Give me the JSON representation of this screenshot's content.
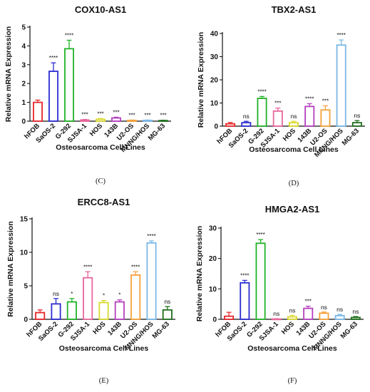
{
  "figure": {
    "panel_labels": [
      "(C)",
      "(D)",
      "(E)",
      "(F)"
    ]
  },
  "chart_data": [
    {
      "type": "bar",
      "title": "COX10-AS1",
      "xlabel": "Osteosarcoma Cell Lines",
      "ylabel": "Relative mRNA Expression",
      "ylim": [
        0,
        5
      ],
      "yticks": [
        0,
        1,
        2,
        3,
        4,
        5
      ],
      "categories": [
        "hFOB",
        "SaOS-2",
        "G-292",
        "SJSA-1",
        "HOS",
        "143B",
        "U2-OS",
        "MNNG/HOS",
        "MG-63"
      ],
      "values": [
        1.0,
        2.65,
        3.85,
        0.06,
        0.1,
        0.17,
        0.04,
        0.04,
        0.03
      ],
      "errors": [
        0.12,
        0.45,
        0.45,
        0.03,
        0.04,
        0.04,
        0.02,
        0.02,
        0.02
      ],
      "significance": [
        "",
        "****",
        "****",
        "***",
        "***",
        "***",
        "***",
        "***",
        "***"
      ],
      "colors": [
        "#e8262a",
        "#2b2bd1",
        "#20b327",
        "#e8669c",
        "#d9d92e",
        "#b53fbf",
        "#f5a13b",
        "#7bb8e6",
        "#1f6e1c"
      ],
      "panel_label": "(C)"
    },
    {
      "type": "bar",
      "title": "TBX2-AS1",
      "xlabel": "Osteosarcoma Cell Lines",
      "ylabel": "Relative mRNA Expression",
      "ylim": [
        0,
        40
      ],
      "yticks": [
        0,
        10,
        20,
        30,
        40
      ],
      "categories": [
        "hFOB",
        "SaOS-2",
        "G-292",
        "SJSA-1",
        "HOS",
        "143B",
        "U2-OS",
        "MNNG/HOS",
        "MG-63"
      ],
      "values": [
        1.0,
        1.5,
        12.0,
        6.5,
        1.5,
        8.5,
        7.0,
        35.0,
        1.5
      ],
      "errors": [
        0.6,
        0.6,
        0.8,
        1.3,
        0.6,
        1.2,
        1.8,
        2.2,
        0.9
      ],
      "significance": [
        "",
        "ns",
        "****",
        "***",
        "ns",
        "****",
        "***",
        "****",
        "ns"
      ],
      "colors": [
        "#e8262a",
        "#2b2bd1",
        "#20b327",
        "#e8669c",
        "#d9d92e",
        "#b53fbf",
        "#f5a13b",
        "#7bb8e6",
        "#1f6e1c"
      ],
      "panel_label": "(D)"
    },
    {
      "type": "bar",
      "title": "ERCC8-AS1",
      "xlabel": "Osteosarcoma Cell Lines",
      "ylabel": "Relative mRNA Expression",
      "ylim": [
        0,
        15
      ],
      "yticks": [
        0,
        5,
        10,
        15
      ],
      "categories": [
        "hFOB",
        "SaOS-2",
        "G-292",
        "SJSA-1",
        "HOS",
        "143B",
        "U2-OS",
        "MNNG/HOS",
        "MG-63"
      ],
      "values": [
        1.0,
        2.3,
        2.6,
        6.2,
        2.5,
        2.6,
        6.6,
        11.4,
        1.4
      ],
      "errors": [
        0.4,
        0.8,
        0.5,
        0.9,
        0.3,
        0.3,
        0.5,
        0.3,
        0.5
      ],
      "significance": [
        "",
        "ns",
        "*",
        "****",
        "*",
        "*",
        "****",
        "****",
        "ns"
      ],
      "colors": [
        "#e8262a",
        "#2b2bd1",
        "#20b327",
        "#e8669c",
        "#d9d92e",
        "#b53fbf",
        "#f5a13b",
        "#7bb8e6",
        "#1f6e1c"
      ],
      "panel_label": "(E)"
    },
    {
      "type": "bar",
      "title": "HMGA2-AS1",
      "xlabel": "Osteosarcoma Cell Lines",
      "ylabel": "Relative mRNA Expression",
      "ylim": [
        0,
        30
      ],
      "yticks": [
        0,
        10,
        20,
        30
      ],
      "categories": [
        "hFOB",
        "SaOS-2",
        "G-292",
        "SJSA-1",
        "HOS",
        "143B",
        "U2-OS",
        "MNNG/HOS",
        "MG-63"
      ],
      "values": [
        1.0,
        12.0,
        25.0,
        0.1,
        0.8,
        3.6,
        2.0,
        1.2,
        0.6
      ],
      "errors": [
        1.3,
        0.8,
        1.2,
        0.1,
        0.5,
        0.7,
        0.4,
        0.4,
        0.3
      ],
      "significance": [
        "",
        "****",
        "****",
        "ns",
        "ns",
        "***",
        "ns",
        "ns",
        "ns"
      ],
      "colors": [
        "#e8262a",
        "#2b2bd1",
        "#20b327",
        "#e8669c",
        "#d9d92e",
        "#b53fbf",
        "#f5a13b",
        "#7bb8e6",
        "#1f6e1c"
      ],
      "panel_label": "(F)"
    }
  ]
}
